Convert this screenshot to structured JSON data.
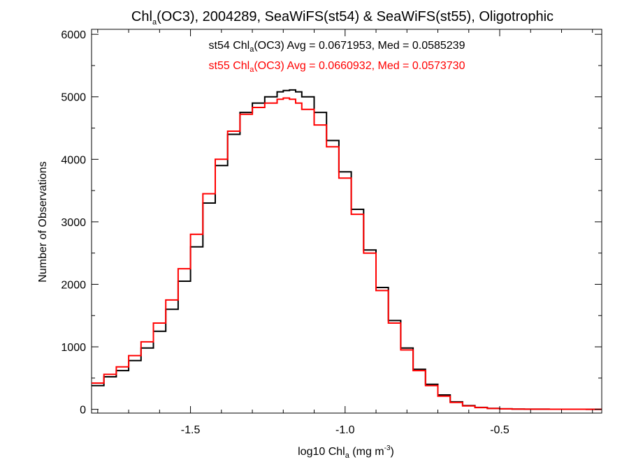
{
  "chart_data": {
    "type": "line",
    "title": {
      "pre": "Chl",
      "sub": "a",
      "post": "(OC3), 2004289, SeaWiFS(st54) & SeaWiFS(st55), Oligotrophic"
    },
    "annotations": [
      {
        "pre": "st54 Chl",
        "sub": "a",
        "post": "(OC3) Avg = 0.0671953, Med = 0.0585239",
        "color": "#000000"
      },
      {
        "pre": "st55 Chl",
        "sub": "a",
        "post": "(OC3) Avg = 0.0660932, Med = 0.0573730",
        "color": "#ff0000"
      }
    ],
    "xlabel": {
      "pre": "log10 Chl",
      "sub": "a",
      "mid": " (mg m",
      "sup": "-3",
      "post": ")"
    },
    "ylabel": "Number of Observations",
    "xlim": [
      -1.82,
      -0.17
    ],
    "ylim": [
      -60,
      6080
    ],
    "xticks": [
      -1.5,
      -1.0,
      -0.5
    ],
    "xtick_labels": [
      "-1.5",
      "-1.0",
      "-0.5"
    ],
    "yticks": [
      0,
      1000,
      2000,
      3000,
      4000,
      5000,
      6000
    ],
    "ytick_labels": [
      "0",
      "1000",
      "2000",
      "3000",
      "4000",
      "5000",
      "6000"
    ],
    "grid": false,
    "style": "step",
    "series": [
      {
        "name": "st54",
        "color": "#000000",
        "x": [
          -1.82,
          -1.78,
          -1.74,
          -1.7,
          -1.66,
          -1.62,
          -1.58,
          -1.54,
          -1.5,
          -1.46,
          -1.42,
          -1.38,
          -1.34,
          -1.3,
          -1.26,
          -1.22,
          -1.2,
          -1.18,
          -1.16,
          -1.14,
          -1.1,
          -1.06,
          -1.02,
          -0.98,
          -0.94,
          -0.9,
          -0.86,
          -0.82,
          -0.78,
          -0.74,
          -0.7,
          -0.66,
          -0.62,
          -0.58,
          -0.54,
          -0.5,
          -0.46,
          -0.42,
          -0.38,
          -0.34,
          -0.3,
          -0.26,
          -0.22,
          -0.17
        ],
        "y": [
          380,
          520,
          620,
          780,
          980,
          1250,
          1600,
          2050,
          2600,
          3300,
          3900,
          4400,
          4750,
          4900,
          5000,
          5080,
          5100,
          5110,
          5080,
          5000,
          4750,
          4300,
          3800,
          3200,
          2550,
          1950,
          1420,
          980,
          640,
          400,
          230,
          120,
          60,
          30,
          15,
          8,
          5,
          3,
          2,
          1,
          1,
          1,
          0,
          0
        ]
      },
      {
        "name": "st55",
        "color": "#ff0000",
        "x": [
          -1.82,
          -1.78,
          -1.74,
          -1.7,
          -1.66,
          -1.62,
          -1.58,
          -1.54,
          -1.5,
          -1.46,
          -1.42,
          -1.38,
          -1.34,
          -1.3,
          -1.26,
          -1.22,
          -1.2,
          -1.18,
          -1.16,
          -1.14,
          -1.1,
          -1.06,
          -1.02,
          -0.98,
          -0.94,
          -0.9,
          -0.86,
          -0.82,
          -0.78,
          -0.74,
          -0.7,
          -0.66,
          -0.62,
          -0.58,
          -0.54,
          -0.5,
          -0.46,
          -0.42,
          -0.38,
          -0.34,
          -0.3,
          -0.26,
          -0.22,
          -0.17
        ],
        "y": [
          420,
          560,
          680,
          860,
          1080,
          1380,
          1750,
          2250,
          2800,
          3450,
          4000,
          4450,
          4720,
          4830,
          4900,
          4960,
          4980,
          4960,
          4900,
          4800,
          4550,
          4200,
          3700,
          3120,
          2500,
          1900,
          1380,
          950,
          620,
          380,
          210,
          110,
          55,
          28,
          14,
          8,
          5,
          3,
          2,
          1,
          1,
          1,
          0,
          0
        ]
      }
    ]
  }
}
